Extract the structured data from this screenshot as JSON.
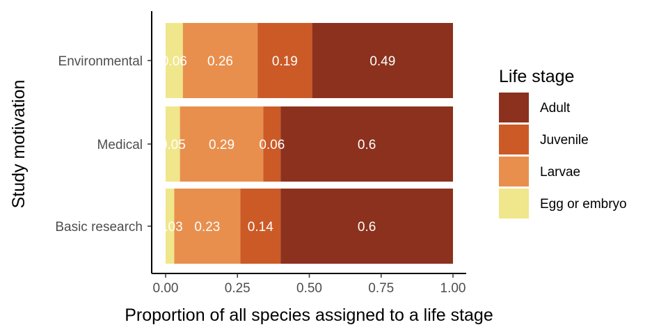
{
  "chart_data": {
    "type": "bar",
    "orientation": "horizontal",
    "stacked": true,
    "title": "",
    "xlabel": "Proportion of all species assigned to a life stage",
    "ylabel": "Study motivation",
    "xlim": [
      0,
      1
    ],
    "xticks": [
      "0.00",
      "0.25",
      "0.50",
      "0.75",
      "1.00"
    ],
    "categories": [
      "Environmental",
      "Medical",
      "Basic research"
    ],
    "series": [
      {
        "name": "Egg or embryo",
        "color": "#F0E68C",
        "values": [
          0.06,
          0.05,
          0.03
        ],
        "labels": [
          "0.06",
          "0.05",
          "0.03"
        ]
      },
      {
        "name": "Larvae",
        "color": "#E88F4E",
        "values": [
          0.26,
          0.29,
          0.23
        ],
        "labels": [
          "0.26",
          "0.29",
          "0.23"
        ]
      },
      {
        "name": "Juvenile",
        "color": "#CC5A27",
        "values": [
          0.19,
          0.06,
          0.14
        ],
        "labels": [
          "0.19",
          "0.06",
          "0.14"
        ]
      },
      {
        "name": "Adult",
        "color": "#8B311D",
        "values": [
          0.49,
          0.6,
          0.6
        ],
        "labels": [
          "0.49",
          "0.6",
          "0.6"
        ]
      }
    ],
    "legend": {
      "title": "Life stage",
      "position": "right",
      "order": [
        "Adult",
        "Juvenile",
        "Larvae",
        "Egg or embryo"
      ]
    }
  }
}
